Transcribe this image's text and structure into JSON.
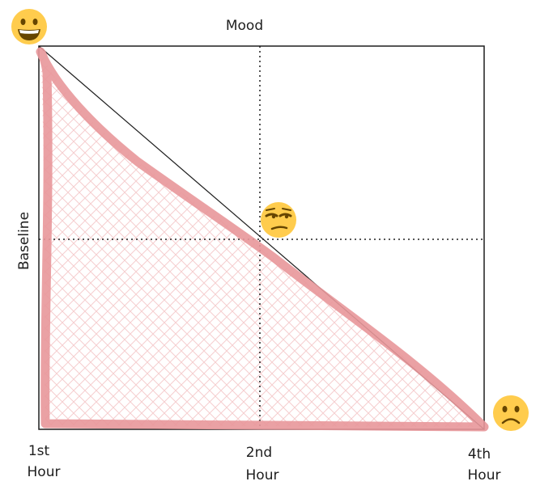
{
  "labels": {
    "top": "Mood",
    "left": "Baseline",
    "hours": [
      {
        "line1": "1st",
        "line2": "Hour"
      },
      {
        "line1": "2nd",
        "line2": "Hour"
      },
      {
        "line1": "4th",
        "line2": "Hour"
      }
    ]
  },
  "emojis": {
    "happy": "grinning-face-emoji",
    "unamused": "unamused-face-emoji",
    "sad": "frowning-face-emoji"
  },
  "colors": {
    "frame": "#1e1e1e",
    "highlight_stroke": "#e8979a",
    "hatch": "#f5c8ca",
    "emoji_face": "#ffcc4d",
    "emoji_feature": "#664500",
    "emoji_mouth_inner": "#ffffff"
  }
}
